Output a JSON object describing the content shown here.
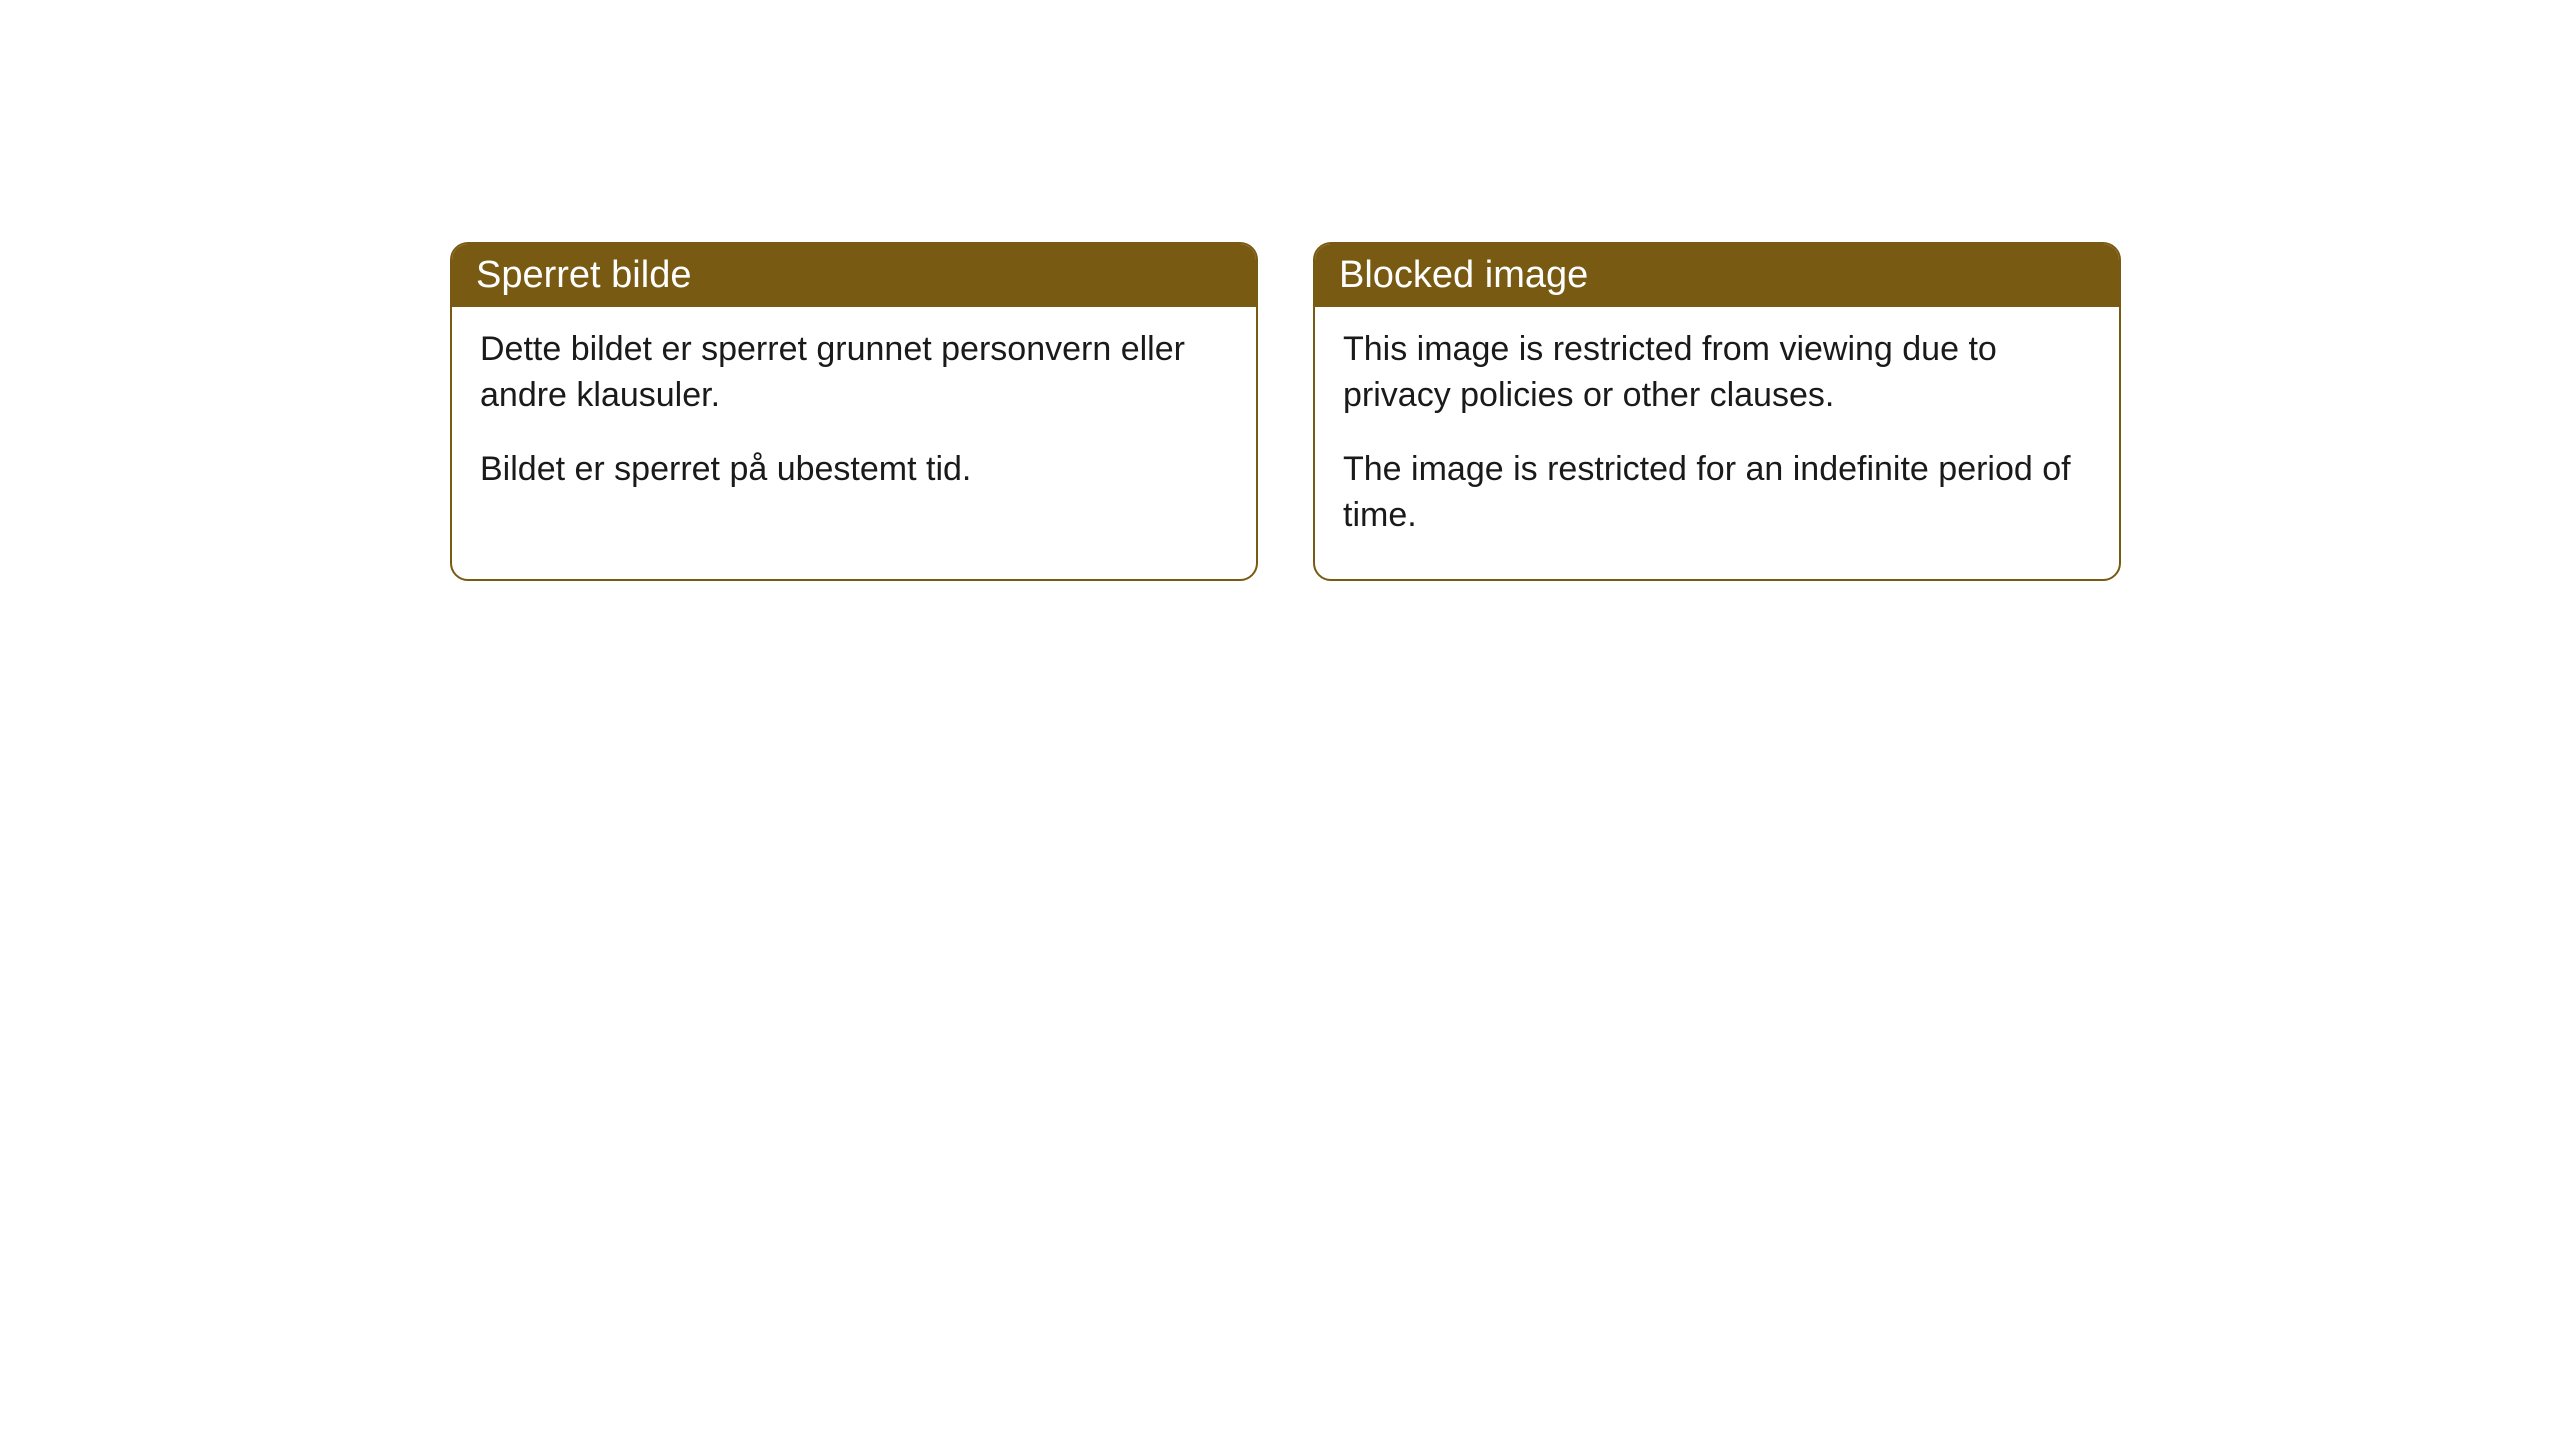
{
  "cards": [
    {
      "title": "Sperret bilde",
      "paragraph1": "Dette bildet er sperret grunnet personvern eller andre klausuler.",
      "paragraph2": "Bildet er sperret på ubestemt tid."
    },
    {
      "title": "Blocked image",
      "paragraph1": "This image is restricted from viewing due to privacy policies or other clauses.",
      "paragraph2": "The image is restricted for an indefinite period of time."
    }
  ],
  "styling": {
    "header_background": "#795a12",
    "header_text_color": "#ffffff",
    "border_color": "#795a12",
    "body_background": "#ffffff",
    "body_text_color": "#1a1a1a",
    "border_radius": 18,
    "title_fontsize": 38,
    "body_fontsize": 34
  }
}
